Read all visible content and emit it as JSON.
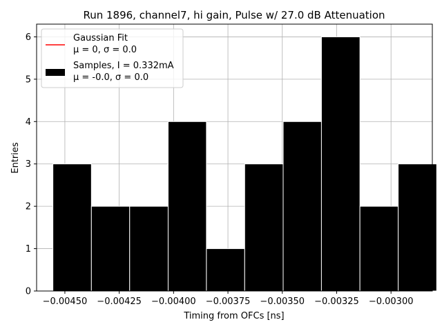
{
  "chart_data": {
    "type": "bar",
    "title": "Run 1896, channel7, hi gain, Pulse w/ 27.0 dB Attenuation",
    "xlabel": "Timing from OFCs [ns]",
    "ylabel": "Entries",
    "xlim": [
      -0.00463,
      -0.00281
    ],
    "ylim": [
      0,
      6.3
    ],
    "grid": true,
    "legend_position": "top-left",
    "xticks": [
      {
        "value": -0.0045,
        "label": "−0.00450"
      },
      {
        "value": -0.00425,
        "label": "−0.00425"
      },
      {
        "value": -0.004,
        "label": "−0.00400"
      },
      {
        "value": -0.00375,
        "label": "−0.00375"
      },
      {
        "value": -0.0035,
        "label": "−0.00350"
      },
      {
        "value": -0.00325,
        "label": "−0.00325"
      },
      {
        "value": -0.003,
        "label": "−0.00300"
      }
    ],
    "yticks": [
      {
        "value": 0,
        "label": "0"
      },
      {
        "value": 1,
        "label": "1"
      },
      {
        "value": 2,
        "label": "2"
      },
      {
        "value": 3,
        "label": "3"
      },
      {
        "value": 4,
        "label": "4"
      },
      {
        "value": 5,
        "label": "5"
      },
      {
        "value": 6,
        "label": "6"
      }
    ],
    "bins": [
      {
        "x0": -0.004555,
        "x1": -0.004378,
        "count": 3
      },
      {
        "x0": -0.004378,
        "x1": -0.004202,
        "count": 2
      },
      {
        "x0": -0.004202,
        "x1": -0.004025,
        "count": 2
      },
      {
        "x0": -0.004025,
        "x1": -0.003849,
        "count": 4
      },
      {
        "x0": -0.003849,
        "x1": -0.003673,
        "count": 1
      },
      {
        "x0": -0.003673,
        "x1": -0.003496,
        "count": 3
      },
      {
        "x0": -0.003496,
        "x1": -0.00332,
        "count": 4
      },
      {
        "x0": -0.00332,
        "x1": -0.003143,
        "count": 6
      },
      {
        "x0": -0.003143,
        "x1": -0.002967,
        "count": 2
      },
      {
        "x0": -0.002967,
        "x1": -0.00279,
        "count": 3
      }
    ],
    "legend": [
      {
        "kind": "line",
        "color": "#ff0000",
        "line1": "Gaussian Fit",
        "line2": "μ = 0, σ = 0.0"
      },
      {
        "kind": "patch",
        "color": "#000000",
        "line1": "Samples, I = 0.332mA",
        "line2": "μ = -0.0, σ = 0.0"
      }
    ]
  }
}
